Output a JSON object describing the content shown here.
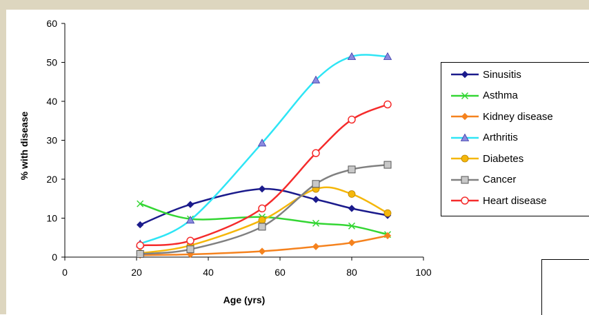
{
  "chart_data": {
    "type": "line",
    "title": "",
    "xlabel": "Age (yrs)",
    "ylabel": "% with disease",
    "xlim": [
      0,
      100
    ],
    "ylim": [
      0,
      60
    ],
    "xticks": [
      0,
      20,
      40,
      60,
      80,
      100
    ],
    "yticks": [
      0,
      10,
      20,
      30,
      40,
      50,
      60
    ],
    "grid": false,
    "legend_position": "right",
    "x": [
      21,
      35,
      55,
      70,
      80,
      90
    ],
    "series": [
      {
        "name": "Sinusitis",
        "color": "#1b1b8c",
        "marker": "diamond",
        "values": [
          8.3,
          13.5,
          17.5,
          14.8,
          12.5,
          10.7
        ]
      },
      {
        "name": "Asthma",
        "color": "#33d633",
        "marker": "x",
        "values": [
          13.7,
          9.8,
          10.3,
          8.7,
          8.0,
          5.8
        ]
      },
      {
        "name": "Kidney disease",
        "color": "#f5821e",
        "marker": "diamond",
        "values": [
          0.5,
          0.7,
          1.5,
          2.7,
          3.7,
          5.5
        ]
      },
      {
        "name": "Arthritis",
        "color": "#2ee5f5",
        "marker": "triangle",
        "values": [
          3.4,
          9.5,
          29.3,
          45.5,
          51.5,
          51.5
        ]
      },
      {
        "name": "Diabetes",
        "color": "#f5b70a",
        "marker": "circle",
        "values": [
          1.0,
          3.0,
          9.5,
          17.5,
          16.2,
          11.3
        ]
      },
      {
        "name": "Cancer",
        "color": "#808080",
        "marker": "square",
        "values": [
          0.8,
          2.0,
          7.8,
          18.8,
          22.5,
          23.7
        ]
      },
      {
        "name": "Heart disease",
        "color": "#f52b2b",
        "marker": "open-circle",
        "values": [
          3.0,
          4.2,
          12.5,
          26.7,
          35.3,
          39.2
        ]
      }
    ]
  }
}
